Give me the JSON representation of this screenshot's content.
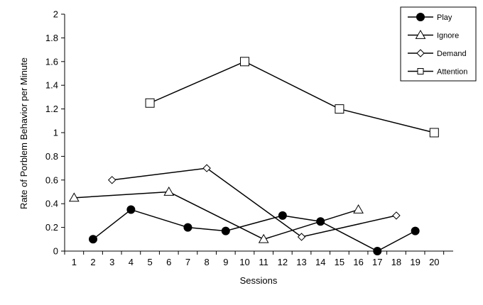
{
  "chart_data": {
    "type": "line",
    "title": "",
    "xlabel": "Sessions",
    "ylabel": "Rate of Porblem Behavior per Minute",
    "categories": [
      "1",
      "2",
      "3",
      "4",
      "5",
      "6",
      "7",
      "8",
      "9",
      "10",
      "11",
      "12",
      "13",
      "14",
      "15",
      "16",
      "17",
      "18",
      "19",
      "20"
    ],
    "ylim": [
      0,
      2
    ],
    "yticks": [
      "0",
      "0.2",
      "0.4",
      "0.6",
      "0.8",
      "1",
      "1.2",
      "1.4",
      "1.6",
      "1.8",
      "2"
    ],
    "grid": false,
    "legend_position": "top-right",
    "series": [
      {
        "name": "Play",
        "marker": "filled-circle",
        "points": [
          [
            2,
            0.1
          ],
          [
            4,
            0.35
          ],
          [
            7,
            0.2
          ],
          [
            9,
            0.17
          ],
          [
            12,
            0.3
          ],
          [
            14,
            0.25
          ],
          [
            17,
            0.0
          ],
          [
            19,
            0.17
          ]
        ]
      },
      {
        "name": "Ignore",
        "marker": "open-triangle",
        "points": [
          [
            1,
            0.45
          ],
          [
            6,
            0.5
          ],
          [
            11,
            0.1
          ],
          [
            16,
            0.35
          ]
        ]
      },
      {
        "name": "Demand",
        "marker": "open-diamond",
        "points": [
          [
            3,
            0.6
          ],
          [
            8,
            0.7
          ],
          [
            13,
            0.12
          ],
          [
            18,
            0.3
          ]
        ]
      },
      {
        "name": "Attention",
        "marker": "open-square",
        "points": [
          [
            5,
            1.25
          ],
          [
            10,
            1.6
          ],
          [
            15,
            1.2
          ],
          [
            20,
            1.0
          ]
        ]
      }
    ]
  }
}
